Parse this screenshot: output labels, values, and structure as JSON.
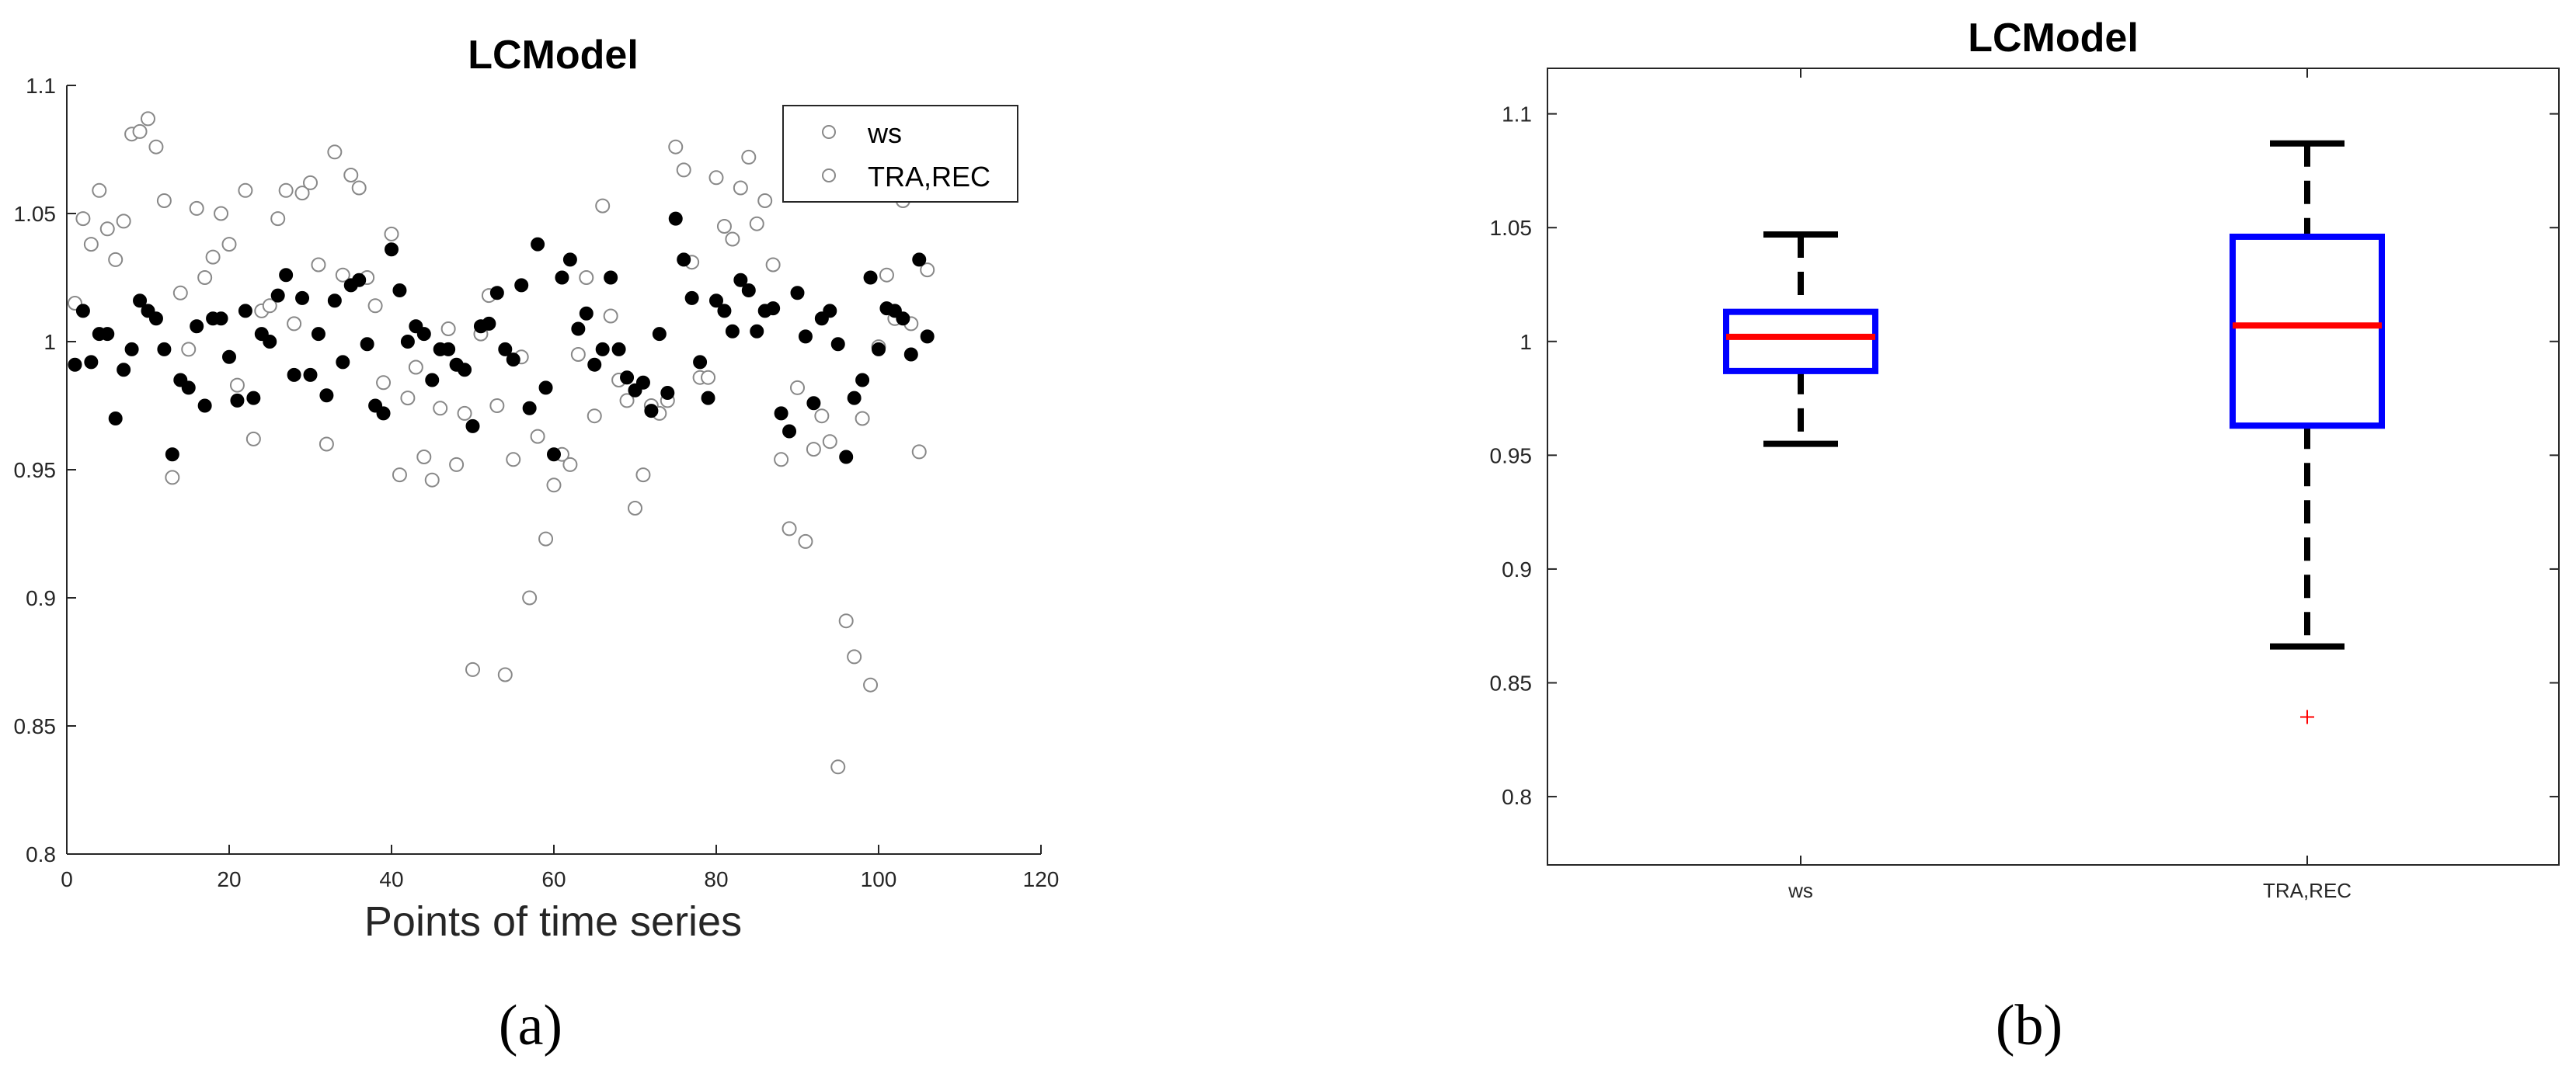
{
  "charts": [
    {
      "type": "scatter",
      "panel_label": "(a)",
      "title": "LCModel",
      "xlabel": "Points of time series",
      "ylabel": "",
      "xlim": [
        0,
        120
      ],
      "ylim": [
        0.8,
        1.1
      ],
      "xticks": [
        0,
        20,
        40,
        60,
        80,
        100,
        120
      ],
      "yticks": [
        0.8,
        0.85,
        0.9,
        0.95,
        1,
        1.05,
        1.1
      ],
      "ytick_labels": [
        "0.8",
        "0.85",
        "0.9",
        "0.95",
        "1",
        "1.05",
        "1.1"
      ],
      "legend_position": "top-right",
      "series": [
        {
          "name": "ws",
          "marker": "filled-circle",
          "color": "#000000",
          "x": [
            1,
            2,
            3,
            4,
            5,
            6,
            7,
            8,
            9,
            10,
            11,
            12,
            13,
            14,
            15,
            16,
            17,
            18,
            19,
            20,
            21,
            22,
            23,
            24,
            25,
            26,
            27,
            28,
            29,
            30,
            31,
            32,
            33,
            34,
            35,
            36,
            37,
            38,
            39,
            40,
            41,
            42,
            43,
            44,
            45,
            46,
            47,
            48,
            49,
            50,
            51,
            52,
            53,
            54,
            55,
            56,
            57,
            58,
            59,
            60,
            61,
            62,
            63,
            64,
            65,
            66,
            67,
            68,
            69,
            70,
            71,
            72,
            73,
            74,
            75,
            76,
            77,
            78,
            79,
            80,
            81,
            82,
            83,
            84,
            85,
            86,
            87,
            88,
            89,
            90,
            91,
            92,
            93,
            94,
            95,
            96,
            97,
            98,
            99,
            100,
            101,
            102,
            103,
            104,
            105,
            106
          ],
          "y": [
            0.991,
            1.012,
            0.992,
            1.003,
            1.003,
            0.97,
            0.989,
            0.997,
            1.016,
            1.012,
            1.009,
            0.997,
            0.956,
            0.985,
            0.982,
            1.006,
            0.975,
            1.009,
            1.009,
            0.994,
            0.977,
            1.012,
            0.978,
            1.003,
            1.0,
            1.018,
            1.026,
            0.987,
            1.017,
            0.987,
            1.003,
            0.979,
            1.016,
            0.992,
            1.022,
            1.024,
            0.999,
            0.975,
            0.972,
            1.036,
            1.02,
            1.0,
            1.006,
            1.003,
            0.985,
            0.997,
            0.997,
            0.991,
            0.989,
            0.967,
            1.006,
            1.007,
            1.019,
            0.997,
            0.993,
            1.022,
            0.974,
            1.038,
            0.982,
            0.956,
            1.025,
            1.032,
            1.005,
            1.011,
            0.991,
            0.997,
            1.025,
            0.997,
            0.986,
            0.981,
            0.984,
            0.973,
            1.003,
            0.98,
            1.048,
            1.032,
            1.017,
            0.992,
            0.978,
            1.016,
            1.012,
            1.004,
            1.024,
            1.02,
            1.004,
            1.012,
            1.013,
            0.972,
            0.965,
            1.019,
            1.002,
            0.976,
            1.009,
            1.012,
            0.999,
            0.955,
            0.978,
            0.985,
            1.025,
            0.997,
            1.013,
            1.012,
            1.009,
            0.995,
            1.032,
            1.002
          ]
        },
        {
          "name": "TRA,REC",
          "marker": "open-circle",
          "color": "#888888",
          "x": [
            1,
            2,
            3,
            4,
            5,
            6,
            7,
            8,
            9,
            10,
            11,
            12,
            13,
            14,
            15,
            16,
            17,
            18,
            19,
            20,
            21,
            22,
            23,
            24,
            25,
            26,
            27,
            28,
            29,
            30,
            31,
            32,
            33,
            34,
            35,
            36,
            37,
            38,
            39,
            40,
            41,
            42,
            43,
            44,
            45,
            46,
            47,
            48,
            49,
            50,
            51,
            52,
            53,
            54,
            55,
            56,
            57,
            58,
            59,
            60,
            61,
            62,
            63,
            64,
            65,
            66,
            67,
            68,
            69,
            70,
            71,
            72,
            73,
            74,
            75,
            76,
            77,
            78,
            79,
            80,
            81,
            82,
            83,
            84,
            85,
            86,
            87,
            88,
            89,
            90,
            91,
            92,
            93,
            94,
            95,
            96,
            97,
            98,
            99,
            100,
            101,
            102,
            103,
            104,
            105,
            106
          ],
          "y": [
            1.015,
            1.048,
            1.038,
            1.059,
            1.044,
            1.032,
            1.047,
            1.081,
            1.082,
            1.087,
            1.076,
            1.055,
            0.947,
            1.019,
            0.997,
            1.052,
            1.025,
            1.033,
            1.05,
            1.038,
            0.983,
            1.059,
            0.962,
            1.012,
            1.014,
            1.048,
            1.059,
            1.007,
            1.058,
            1.062,
            1.03,
            0.96,
            1.074,
            1.026,
            1.065,
            1.06,
            1.025,
            1.014,
            0.984,
            1.042,
            0.948,
            0.978,
            0.99,
            0.955,
            0.946,
            0.974,
            1.005,
            0.952,
            0.972,
            0.872,
            1.003,
            1.018,
            0.975,
            0.87,
            0.954,
            0.994,
            0.9,
            0.963,
            0.923,
            0.944,
            0.956,
            0.952,
            0.995,
            1.025,
            0.971,
            1.053,
            1.01,
            0.985,
            0.977,
            0.935,
            0.948,
            0.975,
            0.972,
            0.977,
            1.076,
            1.067,
            1.031,
            0.986,
            0.986,
            1.064,
            1.045,
            1.04,
            1.06,
            1.072,
            1.046,
            1.055,
            1.03,
            0.954,
            0.927,
            0.982,
            0.922,
            0.958,
            0.971,
            0.961,
            0.834,
            0.891,
            0.877,
            0.97,
            0.866,
            0.998,
            1.026,
            1.009,
            1.055,
            1.007,
            0.957,
            1.028
          ]
        }
      ]
    },
    {
      "type": "box",
      "panel_label": "(b)",
      "title": "LCModel",
      "categories": [
        "ws",
        "TRA,REC"
      ],
      "ylim": [
        0.77,
        1.12
      ],
      "yticks": [
        0.8,
        0.85,
        0.9,
        0.95,
        1,
        1.05,
        1.1
      ],
      "ytick_labels": [
        "0.8",
        "0.85",
        "0.9",
        "0.95",
        "1",
        "1.05",
        "1.1"
      ],
      "box_color": "#0000ff",
      "median_color": "#ff0000",
      "whisker_color": "#000000",
      "outlier_color": "#ff0000",
      "boxes": [
        {
          "category": "ws",
          "whisker_low": 0.955,
          "q1": 0.987,
          "median": 1.002,
          "q3": 1.013,
          "whisker_high": 1.047,
          "outliers": []
        },
        {
          "category": "TRA,REC",
          "whisker_low": 0.866,
          "q1": 0.963,
          "median": 1.007,
          "q3": 1.046,
          "whisker_high": 1.087,
          "outliers": [
            0.835
          ]
        }
      ]
    }
  ]
}
